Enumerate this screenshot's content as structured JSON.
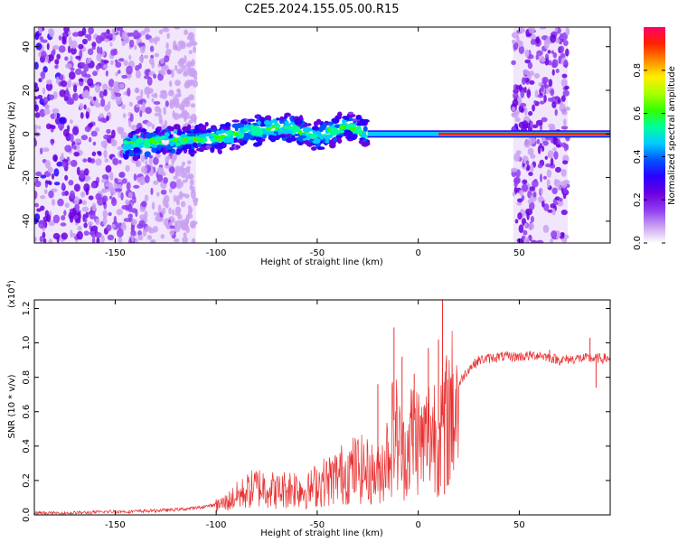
{
  "title": "C2E5.2024.155.05.00.R15",
  "chart_data": [
    {
      "type": "heatmap",
      "xlabel": "Height of straight line (km)",
      "ylabel": "Frequency (Hz)",
      "xlim": [
        -190,
        95
      ],
      "ylim": [
        -50,
        49
      ],
      "xticks": [
        -150,
        -100,
        -50,
        0,
        50
      ],
      "yticks": [
        -40,
        -20,
        0,
        20,
        40
      ],
      "colorbar": {
        "label": "Normalized spectral amplitude",
        "range": [
          0,
          1
        ],
        "ticks": [
          0.0,
          0.2,
          0.4,
          0.6,
          0.8
        ],
        "colors": [
          "#ffffff",
          "#c9a0f2",
          "#8f3cf0",
          "#6a00e0",
          "#2b00ff",
          "#0055ff",
          "#00ccff",
          "#00ff99",
          "#33ff00",
          "#aaff00",
          "#ffee00",
          "#ff8800",
          "#ff2200",
          "#ff0066"
        ]
      },
      "features": {
        "noise_band_left_km": [
          -190,
          -110
        ],
        "noise_band_right_km": [
          47,
          74
        ],
        "carrier_line": {
          "x_range_km": [
            -150,
            95
          ],
          "frequency_hz": 0
        },
        "plume_center_hz": [
          [
            -145,
            -5
          ],
          [
            -120,
            -3
          ],
          [
            -100,
            -2
          ],
          [
            -80,
            2
          ],
          [
            -65,
            3
          ],
          [
            -50,
            -1
          ],
          [
            -35,
            4
          ],
          [
            -25,
            0
          ]
        ]
      }
    },
    {
      "type": "line",
      "xlabel": "Height of straight line (km)",
      "ylabel": "SNR (10 * v/v)",
      "yexponent_label": "(x10",
      "yexponent_power": "4",
      "yexponent_close": ")",
      "xlim": [
        -190,
        95
      ],
      "ylim": [
        0,
        1.25
      ],
      "xticks": [
        -150,
        -100,
        -50,
        0,
        50
      ],
      "yticks": [
        0.0,
        0.2,
        0.4,
        0.6,
        0.8,
        1.0,
        1.2
      ],
      "color": "#e83030",
      "series": [
        {
          "x": [
            -190,
            -180,
            -170,
            -160,
            -150,
            -140,
            -130,
            -120,
            -110,
            -100,
            -95,
            -90,
            -85,
            -80,
            -75,
            -70,
            -65,
            -60,
            -55,
            -50,
            -45,
            -40,
            -35,
            -30,
            -25,
            -20,
            -15,
            -12,
            -10,
            -8,
            -5,
            -2,
            0,
            2,
            5,
            8,
            10,
            12,
            14,
            16,
            18,
            20,
            22,
            25,
            30,
            40,
            50,
            60,
            70,
            80,
            90,
            95
          ],
          "y": [
            0.01,
            0.01,
            0.012,
            0.015,
            0.02,
            0.02,
            0.025,
            0.03,
            0.04,
            0.06,
            0.08,
            0.12,
            0.15,
            0.18,
            0.18,
            0.15,
            0.17,
            0.18,
            0.15,
            0.2,
            0.22,
            0.25,
            0.28,
            0.3,
            0.28,
            0.25,
            0.4,
            0.55,
            0.5,
            0.35,
            0.45,
            0.55,
            0.5,
            0.45,
            0.52,
            0.55,
            0.5,
            0.58,
            0.6,
            0.68,
            0.72,
            0.75,
            0.8,
            0.85,
            0.9,
            0.92,
            0.92,
            0.93,
            0.9,
            0.91,
            0.91,
            0.91
          ]
        }
      ],
      "spikes": [
        [
          -20,
          0.76
        ],
        [
          -12,
          1.09
        ],
        [
          -8,
          0.92
        ],
        [
          -2,
          0.82
        ],
        [
          5,
          0.97
        ],
        [
          10,
          1.02
        ],
        [
          12,
          1.25
        ],
        [
          13,
          0.12
        ],
        [
          65,
          0.96
        ],
        [
          85,
          1.03
        ],
        [
          88,
          0.74
        ]
      ]
    }
  ]
}
